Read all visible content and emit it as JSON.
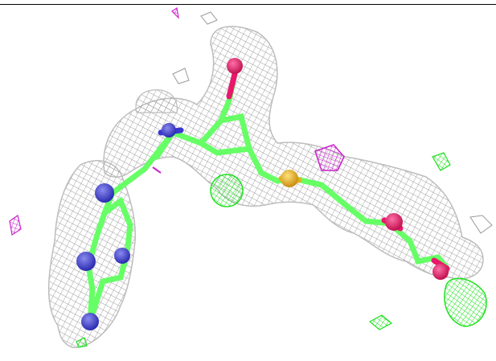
{
  "scene": {
    "background": "#ffffff",
    "top_border_color": "#000000"
  },
  "colors": {
    "density_mesh": "#9a9a9a",
    "carbon": "#66ff66",
    "nitrogen": "#3838d0",
    "oxygen": "#e8186a",
    "sulfur": "#e6b020",
    "positive_difference_density": "#22e022",
    "negative_difference_density": "#cc22cc"
  },
  "legend_semantics": {
    "mesh": "electron-density-mesh",
    "green_blobs": "positive-difference-density",
    "magenta_blobs": "negative-difference-density"
  }
}
